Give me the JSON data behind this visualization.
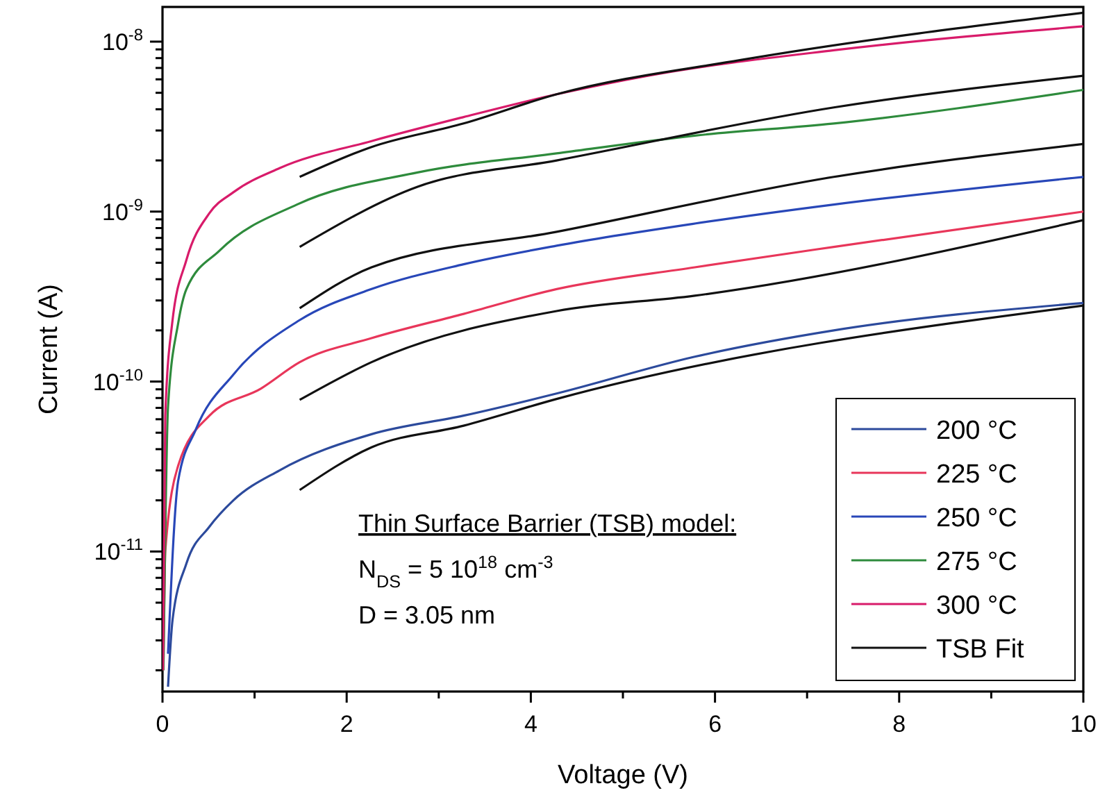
{
  "chart_data": {
    "type": "line",
    "xlabel": "Voltage (V)",
    "ylabel": "Current (A)",
    "log": "y",
    "legend": "bottom right",
    "line_style": "solid",
    "marker": "none",
    "grid": false,
    "xlim": [
      0,
      10
    ],
    "ylim": [
      1.5e-12,
      1.6e-08
    ],
    "xticks": [
      0,
      {
        "value": 1,
        "label": null
      },
      2,
      {
        "value": 3,
        "label": null
      },
      4,
      {
        "value": 5,
        "label": null
      },
      6,
      {
        "value": 7,
        "label": null
      },
      8,
      {
        "value": 9,
        "label": null
      },
      10
    ],
    "yticks": [
      {
        "value": 2e-12,
        "label": null
      },
      {
        "value": 3e-12,
        "label": null
      },
      {
        "value": 4e-12,
        "label": null
      },
      {
        "value": 5e-12,
        "label": null
      },
      {
        "value": 6e-12,
        "label": null
      },
      {
        "value": 7e-12,
        "label": null
      },
      {
        "value": 8e-12,
        "label": null
      },
      {
        "value": 9e-12,
        "label": null
      },
      {
        "value": 1e-11,
        "label": "10$^{-11}$"
      },
      {
        "value": 2e-11,
        "label": null
      },
      {
        "value": 3e-11,
        "label": null
      },
      {
        "value": 4e-11,
        "label": null
      },
      {
        "value": 5e-11,
        "label": null
      },
      {
        "value": 6e-11,
        "label": null
      },
      {
        "value": 7e-11,
        "label": null
      },
      {
        "value": 8e-11,
        "label": null
      },
      {
        "value": 9e-11,
        "label": null
      },
      {
        "value": 1e-10,
        "label": "10$^{-10}$"
      },
      {
        "value": 2e-10,
        "label": null
      },
      {
        "value": 3e-10,
        "label": null
      },
      {
        "value": 4e-10,
        "label": null
      },
      {
        "value": 5e-10,
        "label": null
      },
      {
        "value": 6e-10,
        "label": null
      },
      {
        "value": 7e-10,
        "label": null
      },
      {
        "value": 8e-10,
        "label": null
      },
      {
        "value": 9e-10,
        "label": null
      },
      {
        "value": 1e-09,
        "label": "10$^{-9}$"
      },
      {
        "value": 2e-09,
        "label": null
      },
      {
        "value": 3e-09,
        "label": null
      },
      {
        "value": 4e-09,
        "label": null
      },
      {
        "value": 5e-09,
        "label": null
      },
      {
        "value": 6e-09,
        "label": null
      },
      {
        "value": 7e-09,
        "label": null
      },
      {
        "value": 8e-09,
        "label": null
      },
      {
        "value": 9e-09,
        "label": null
      },
      {
        "value": 1e-08,
        "label": "10$^{-8}$"
      }
    ],
    "annotations": [
      "Thin Surface Barrier (TSB) model:",
      "N$_{DS}$ = 5 10$^{18}$ cm$^{-3}$",
      "D = 3.05 nm"
    ],
    "series": [
      {
        "name": "200 °C",
        "color": "#2c4a9c",
        "x": [
          0.06,
          0.11,
          0.26,
          0.51,
          0.77,
          1.27,
          2.27,
          3.27,
          4.28,
          5.78,
          7.29,
          10
        ],
        "values": [
          1.6e-12,
          4e-12,
          8.5e-12,
          1.4e-11,
          2e-11,
          3e-11,
          4.9e-11,
          6.3e-11,
          8.5e-11,
          1.4e-10,
          2e-10,
          2.9e-10
        ]
      },
      {
        "name": "225 °C",
        "color": "#e8365a",
        "x": [
          0.01,
          0.03,
          0.17,
          0.51,
          1.07,
          1.49,
          2.27,
          3.27,
          4.28,
          5.78,
          7.29,
          10
        ],
        "values": [
          2.1e-12,
          1e-11,
          3.2e-11,
          6.3e-11,
          9.1e-11,
          1.3e-10,
          1.8e-10,
          2.5e-10,
          3.5e-10,
          4.7e-10,
          6.2e-10,
          1e-09
        ]
      },
      {
        "name": "250 °C",
        "color": "#2847b8",
        "x": [
          0.06,
          0.17,
          0.36,
          0.77,
          1.49,
          2.27,
          3.27,
          4.28,
          5.78,
          7.29,
          10
        ],
        "values": [
          2.5e-12,
          2.6e-11,
          5.2e-11,
          1.1e-10,
          2.3e-10,
          3.5e-10,
          4.9e-10,
          6.3e-10,
          8.5e-10,
          1.1e-09,
          1.6e-09
        ]
      },
      {
        "name": "275 °C",
        "color": "#2e8b3c",
        "x": [
          0.01,
          0.06,
          0.17,
          0.26,
          0.62,
          1.46,
          2.77,
          4.28,
          5.78,
          7.29,
          10
        ],
        "values": [
          2e-12,
          7.1e-11,
          2.2e-10,
          3.5e-10,
          5.9e-10,
          1.1e-09,
          1.7e-09,
          2.2e-09,
          2.8e-09,
          3.3e-09,
          5.2e-09
        ]
      },
      {
        "name": "300 °C",
        "color": "#d81b6a",
        "x": [
          0.005,
          0.03,
          0.105,
          0.26,
          0.51,
          0.77,
          1.27,
          2.27,
          3.27,
          4.28,
          5.27,
          7.29,
          10
        ],
        "values": [
          2e-12,
          6.3e-11,
          2.2e-10,
          5.2e-10,
          9.8e-10,
          1.3e-09,
          1.8e-09,
          2.6e-09,
          3.6e-09,
          4.9e-09,
          6.3e-09,
          8.9e-09,
          1.23e-08
        ]
      },
      {
        "name": "TSB Fit",
        "color": "#111111",
        "x": [
          1.49,
          2.27,
          3.27,
          4.28,
          10
        ],
        "values": [
          2.3e-11,
          4.1e-11,
          5.5e-11,
          7.9e-11,
          2.8e-10
        ]
      },
      {
        "color": "#111111",
        "x": [
          1.49,
          2.27,
          4.28,
          5.78,
          10
        ],
        "values": [
          7.8e-11,
          1.3e-10,
          2.6e-10,
          3.2e-10,
          8.9e-10
        ]
      },
      {
        "color": "#111111",
        "x": [
          1.49,
          2.27,
          4.28,
          7.29,
          10
        ],
        "values": [
          2.7e-10,
          4.7e-10,
          7.6e-10,
          1.6e-09,
          2.5e-09
        ]
      },
      {
        "color": "#111111",
        "x": [
          1.49,
          2.77,
          4.28,
          7.29,
          10
        ],
        "values": [
          6.2e-10,
          1.4e-09,
          2e-09,
          4.1e-09,
          6.3e-09
        ]
      },
      {
        "color": "#111111",
        "x": [
          1.49,
          2.27,
          3.27,
          4.28,
          6.28,
          10
        ],
        "values": [
          1.6e-09,
          2.4e-09,
          3.3e-09,
          4.9e-09,
          7.8e-09,
          1.48e-08
        ]
      }
    ]
  }
}
